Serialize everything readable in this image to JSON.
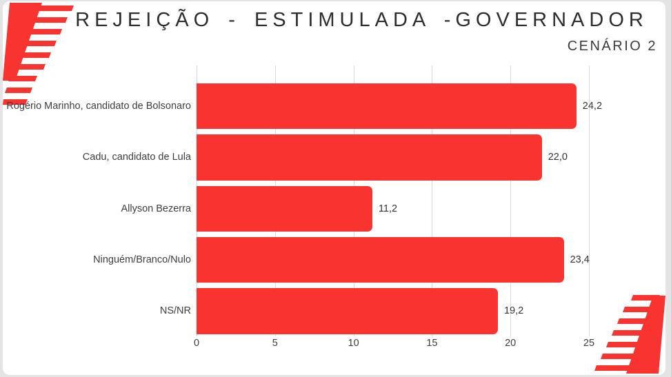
{
  "page": {
    "title": "REJEIÇÃO - ESTIMULADA -GOVERNADOR",
    "subtitle": "CENÁRIO 2"
  },
  "colors": {
    "bar": "#f93330",
    "corner_stripes": "#f93330",
    "grid": "#d9d9d9",
    "text": "#3d3d3d",
    "title_text": "#2d2d2d",
    "frame": "#e4e4e4",
    "background": "#ffffff"
  },
  "chart_data": {
    "type": "bar",
    "orientation": "horizontal",
    "title": "REJEIÇÃO - ESTIMULADA -GOVERNADOR",
    "subtitle": "CENÁRIO 2",
    "xlabel": "",
    "ylabel": "",
    "categories": [
      "Rogério Marinho, candidato de Bolsonaro",
      "Cadu, candidato de Lula",
      "Allyson Bezerra",
      "Ninguém/Branco/Nulo",
      "NS/NR"
    ],
    "values": [
      24.2,
      22.0,
      11.2,
      23.4,
      19.2
    ],
    "value_labels": [
      "24,2",
      "22,0",
      "11,2",
      "23,4",
      "19,2"
    ],
    "x_ticks": [
      0,
      5,
      10,
      15,
      20,
      25
    ],
    "x_tick_labels": [
      "0",
      "5",
      "10",
      "15",
      "20",
      "25"
    ],
    "xlim": [
      0,
      25
    ],
    "grid": true,
    "legend": false,
    "bar_color": "#f93330",
    "decimal_separator": ","
  }
}
